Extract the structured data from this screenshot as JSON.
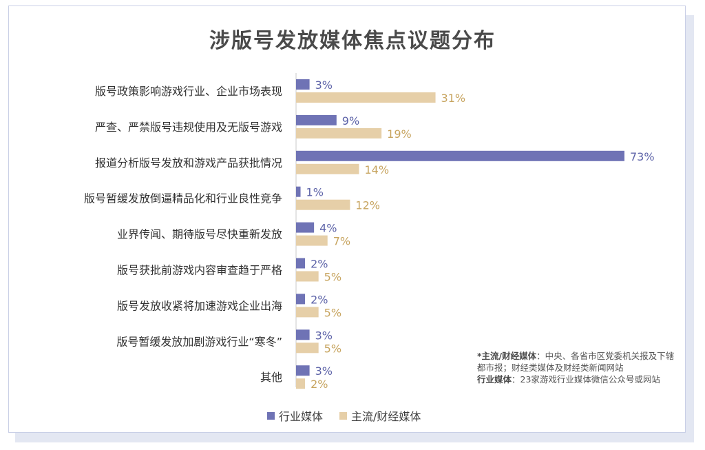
{
  "colors": {
    "industry": "#6f73b5",
    "mainstream": "#e6cfa8",
    "industry_text": "#5d63a8",
    "mainstream_text": "#c7a45f"
  },
  "chart_data": {
    "type": "bar",
    "orientation": "horizontal",
    "title": "涉版号发放媒体焦点议题分布",
    "categories": [
      "版号政策影响游戏行业、企业市场表现",
      "严查、严禁版号违规使用及无版号游戏",
      "报道分析版号发放和游戏产品获批情况",
      "版号暂缓发放倒逼精品化和行业良性竞争",
      "业界传闻、期待版号尽快重新发放",
      "版号获批前游戏内容审查趋于严格",
      "版号发放收紧将加速游戏企业出海",
      "版号暂缓发放加剧游戏行业“寒冬”",
      "其他"
    ],
    "series": [
      {
        "name": "行业媒体",
        "values": [
          3,
          9,
          73,
          1,
          4,
          2,
          2,
          3,
          3
        ]
      },
      {
        "name": "主流/财经媒体",
        "values": [
          31,
          19,
          14,
          12,
          7,
          5,
          5,
          5,
          2
        ]
      }
    ],
    "value_suffix": "%",
    "xlim": [
      0,
      73
    ],
    "legend_position": "bottom",
    "grid": false
  },
  "note": {
    "label1": "*主流/财经媒体",
    "text1": "：中央、各省市区党委机关报及下辖都市报；财经类媒体及财经类新闻网站",
    "label2": "行业媒体",
    "text2": "：23家游戏行业媒体微信公众号或网站"
  }
}
